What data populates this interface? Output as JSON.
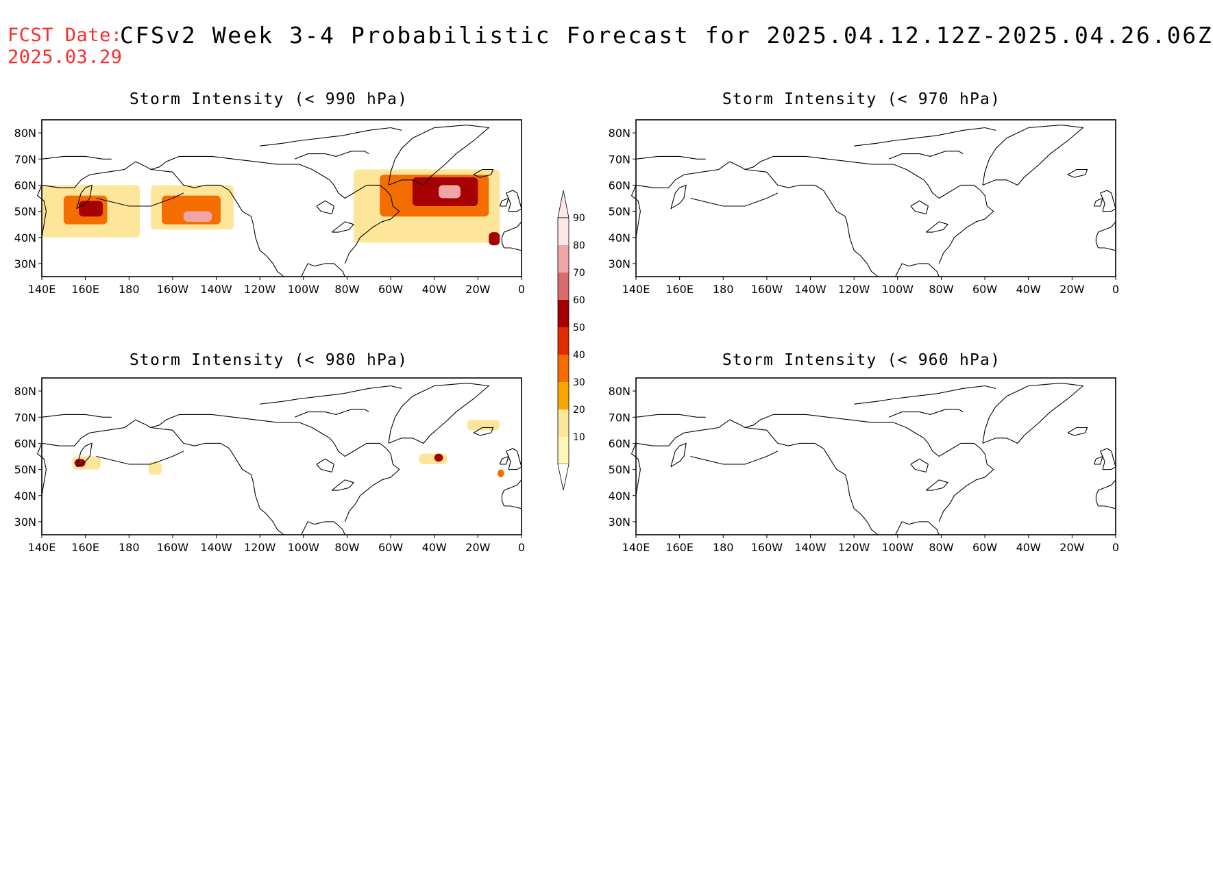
{
  "header": {
    "fcst_label": "FCST Date:",
    "fcst_date": "2025.03.29",
    "title": "CFSv2 Week 3-4 Probabilistic Forecast for 2025.04.12.12Z-2025.04.26.06Z"
  },
  "axes": {
    "lon_labels": [
      "140E",
      "160E",
      "180",
      "160W",
      "140W",
      "120W",
      "100W",
      "80W",
      "60W",
      "40W",
      "20W",
      "0"
    ],
    "lat_labels": [
      "80N",
      "70N",
      "60N",
      "50N",
      "40N",
      "30N"
    ]
  },
  "panels": [
    {
      "id": "p990",
      "title": "Storm Intensity (< 990 hPa)"
    },
    {
      "id": "p970",
      "title": "Storm Intensity (< 970 hPa)"
    },
    {
      "id": "p980",
      "title": "Storm Intensity (< 980 hPa)"
    },
    {
      "id": "p960",
      "title": "Storm Intensity (< 960 hPa)"
    }
  ],
  "colorbar": {
    "levels": [
      "10",
      "20",
      "30",
      "40",
      "50",
      "60",
      "70",
      "80",
      "90"
    ],
    "colors": [
      "#fff6bb",
      "#fde699",
      "#f9a600",
      "#f46d00",
      "#e02c00",
      "#a60000",
      "#d86b6b",
      "#f0a6a6",
      "#fde7e7"
    ]
  },
  "chart_data": {
    "type": "heatmap",
    "x_range": [
      "140E",
      "0"
    ],
    "y_range": [
      "25N",
      "85N"
    ],
    "units": "%",
    "panels": [
      {
        "title": "Storm Intensity (< 990 hPa)",
        "regions": [
          {
            "lon": [
              140,
              185
            ],
            "lat": [
              40,
              60
            ],
            "level": 20
          },
          {
            "lon": [
              150,
              170
            ],
            "lat": [
              45,
              56
            ],
            "level": 40
          },
          {
            "lon": [
              157,
              168
            ],
            "lat": [
              48,
              54
            ],
            "level": 60
          },
          {
            "lon": [
              190,
              228
            ],
            "lat": [
              43,
              60
            ],
            "level": 20
          },
          {
            "lon": [
              195,
              222
            ],
            "lat": [
              45,
              56
            ],
            "level": 40
          },
          {
            "lon": [
              205,
              218
            ],
            "lat": [
              46,
              50
            ],
            "level": 80
          },
          {
            "lon": [
              283,
              350
            ],
            "lat": [
              38,
              66
            ],
            "level": 20
          },
          {
            "lon": [
              295,
              345
            ],
            "lat": [
              48,
              64
            ],
            "level": 40
          },
          {
            "lon": [
              310,
              340
            ],
            "lat": [
              52,
              63
            ],
            "level": 60
          },
          {
            "lon": [
              322,
              332
            ],
            "lat": [
              55,
              60
            ],
            "level": 80
          },
          {
            "lon": [
              345,
              350
            ],
            "lat": [
              37,
              42
            ],
            "level": 60
          }
        ]
      },
      {
        "title": "Storm Intensity (< 970 hPa)",
        "regions": []
      },
      {
        "title": "Storm Intensity (< 980 hPa)",
        "regions": [
          {
            "lon": [
              154,
              167
            ],
            "lat": [
              50,
              55
            ],
            "level": 20
          },
          {
            "lon": [
              155,
              160
            ],
            "lat": [
              51,
              54
            ],
            "level": 60
          },
          {
            "lon": [
              189,
              195
            ],
            "lat": [
              48,
              53
            ],
            "level": 20
          },
          {
            "lon": [
              313,
              326
            ],
            "lat": [
              52,
              56
            ],
            "level": 20
          },
          {
            "lon": [
              320,
              324
            ],
            "lat": [
              53,
              56
            ],
            "level": 60
          },
          {
            "lon": [
              335,
              350
            ],
            "lat": [
              65,
              69
            ],
            "level": 20
          },
          {
            "lon": [
              349,
              352
            ],
            "lat": [
              47,
              50
            ],
            "level": 40
          }
        ]
      },
      {
        "title": "Storm Intensity (< 960 hPa)",
        "regions": []
      }
    ]
  }
}
